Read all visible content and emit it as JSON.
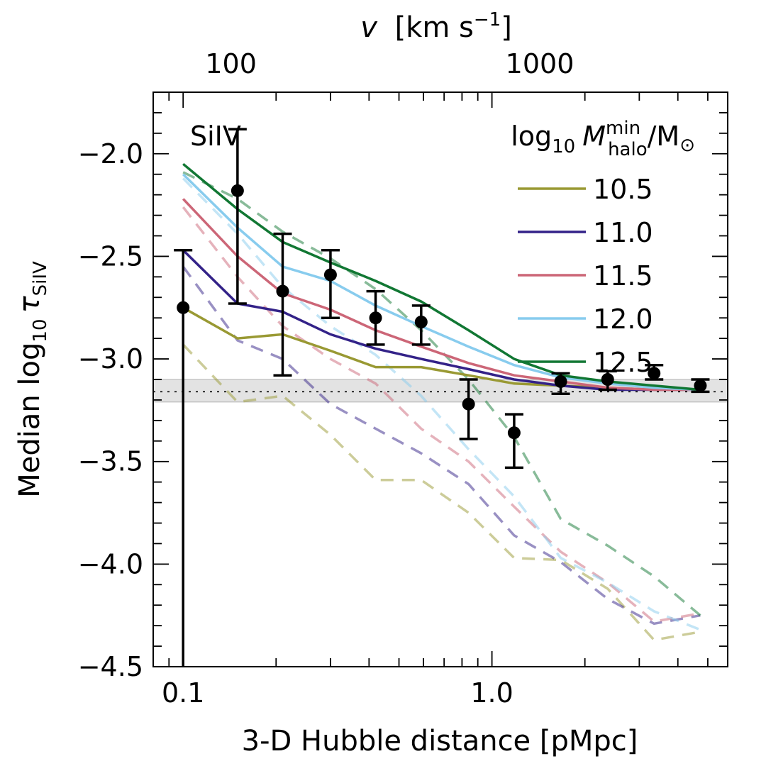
{
  "chart_data": {
    "type": "line",
    "title": "",
    "annotation": "SiIV",
    "xlabel": "3-D Hubble distance [pMpc]",
    "ylabel_prefix": "Median log",
    "ylabel_sub": "10",
    "ylabel_symbol": "τ",
    "ylabel_symbol_sub": "SiIV",
    "top_xlabel_var": "v",
    "top_xlabel_units": "[km s",
    "top_xlabel_exp": "−1",
    "top_xlabel_close": "]",
    "xscale": "log",
    "xlim": [
      0.08,
      5.8
    ],
    "ylim": [
      -4.5,
      -1.7
    ],
    "x_ticks": [
      {
        "value": 0.1,
        "label": "0.1"
      },
      {
        "value": 1.0,
        "label": "1.0"
      }
    ],
    "top_ticks": [
      {
        "value": 100,
        "label": "100"
      },
      {
        "value": 1000,
        "label": "1000"
      }
    ],
    "top_axis_kms_per_pmpc": 700,
    "y_ticks": [
      {
        "value": -2.0,
        "label": "−2.0"
      },
      {
        "value": -2.5,
        "label": "−2.5"
      },
      {
        "value": -3.0,
        "label": "−3.0"
      },
      {
        "value": -3.5,
        "label": "−3.5"
      },
      {
        "value": -4.0,
        "label": "−4.0"
      },
      {
        "value": -4.5,
        "label": "−4.5"
      }
    ],
    "legend_title_prefix": "log",
    "legend_title_sub": "10",
    "legend_title_var": "M",
    "legend_title_sup": "min",
    "legend_title_subvar": "halo",
    "legend_title_unit": "/M",
    "legend_title_sun": "⊙",
    "legend_position": "top-right",
    "x": [
      0.1,
      0.15,
      0.21,
      0.3,
      0.42,
      0.59,
      0.84,
      1.18,
      1.67,
      2.37,
      3.35,
      4.73
    ],
    "series": [
      {
        "name": "10.5",
        "color": "#999933",
        "solid": [
          -2.75,
          -2.9,
          -2.88,
          -2.96,
          -3.04,
          -3.04,
          -3.08,
          -3.12,
          -3.13,
          -3.14,
          -3.15,
          -3.15
        ],
        "dashed": [
          -2.93,
          -3.21,
          -3.18,
          -3.37,
          -3.59,
          -3.59,
          -3.75,
          -3.97,
          -3.98,
          -4.12,
          -4.37,
          -4.33
        ]
      },
      {
        "name": "11.0",
        "color": "#332288",
        "solid": [
          -2.47,
          -2.73,
          -2.77,
          -2.88,
          -2.95,
          -3.0,
          -3.05,
          -3.1,
          -3.13,
          -3.15,
          -3.15,
          -3.15
        ],
        "dashed": [
          -2.55,
          -2.91,
          -3.0,
          -3.22,
          -3.34,
          -3.46,
          -3.61,
          -3.86,
          -3.99,
          -4.17,
          -4.29,
          -4.25
        ]
      },
      {
        "name": "11.5",
        "color": "#CC6677",
        "solid": [
          -2.22,
          -2.5,
          -2.68,
          -2.76,
          -2.86,
          -2.94,
          -3.02,
          -3.08,
          -3.11,
          -3.14,
          -3.15,
          -3.15
        ],
        "dashed": [
          -2.26,
          -2.6,
          -2.84,
          -3.0,
          -3.12,
          -3.34,
          -3.5,
          -3.72,
          -3.94,
          -4.09,
          -4.28,
          -4.24
        ]
      },
      {
        "name": "12.0",
        "color": "#88CCEE",
        "solid": [
          -2.1,
          -2.36,
          -2.55,
          -2.62,
          -2.74,
          -2.84,
          -2.94,
          -3.03,
          -3.09,
          -3.12,
          -3.14,
          -3.15
        ],
        "dashed": [
          -2.12,
          -2.39,
          -2.65,
          -2.84,
          -2.98,
          -3.18,
          -3.44,
          -3.67,
          -3.97,
          -4.09,
          -4.23,
          -4.32
        ]
      },
      {
        "name": "12.5",
        "color": "#117733",
        "solid": [
          -2.05,
          -2.27,
          -2.43,
          -2.53,
          -2.62,
          -2.72,
          -2.86,
          -3.0,
          -3.08,
          -3.11,
          -3.13,
          -3.15
        ],
        "dashed": [
          -2.09,
          -2.22,
          -2.38,
          -2.51,
          -2.66,
          -2.86,
          -3.1,
          -3.38,
          -3.78,
          -3.91,
          -4.06,
          -4.25
        ]
      }
    ],
    "points": {
      "x": [
        0.1,
        0.15,
        0.21,
        0.3,
        0.42,
        0.59,
        0.84,
        1.18,
        1.67,
        2.37,
        3.35,
        4.73
      ],
      "y": [
        -2.75,
        -2.18,
        -2.67,
        -2.59,
        -2.8,
        -2.82,
        -3.22,
        -3.36,
        -3.11,
        -3.1,
        -3.07,
        -3.13
      ],
      "ylo": [
        -4.5,
        -2.73,
        -3.08,
        -2.8,
        -2.93,
        -2.93,
        -3.39,
        -3.53,
        -3.17,
        -3.15,
        -3.1,
        -3.16
      ],
      "yhi": [
        -2.47,
        -1.88,
        -2.39,
        -2.47,
        -2.67,
        -2.74,
        -3.1,
        -3.27,
        -3.07,
        -3.06,
        -3.03,
        -3.1
      ]
    },
    "reference_line": -3.16,
    "reference_band": [
      -3.21,
      -3.1
    ]
  }
}
